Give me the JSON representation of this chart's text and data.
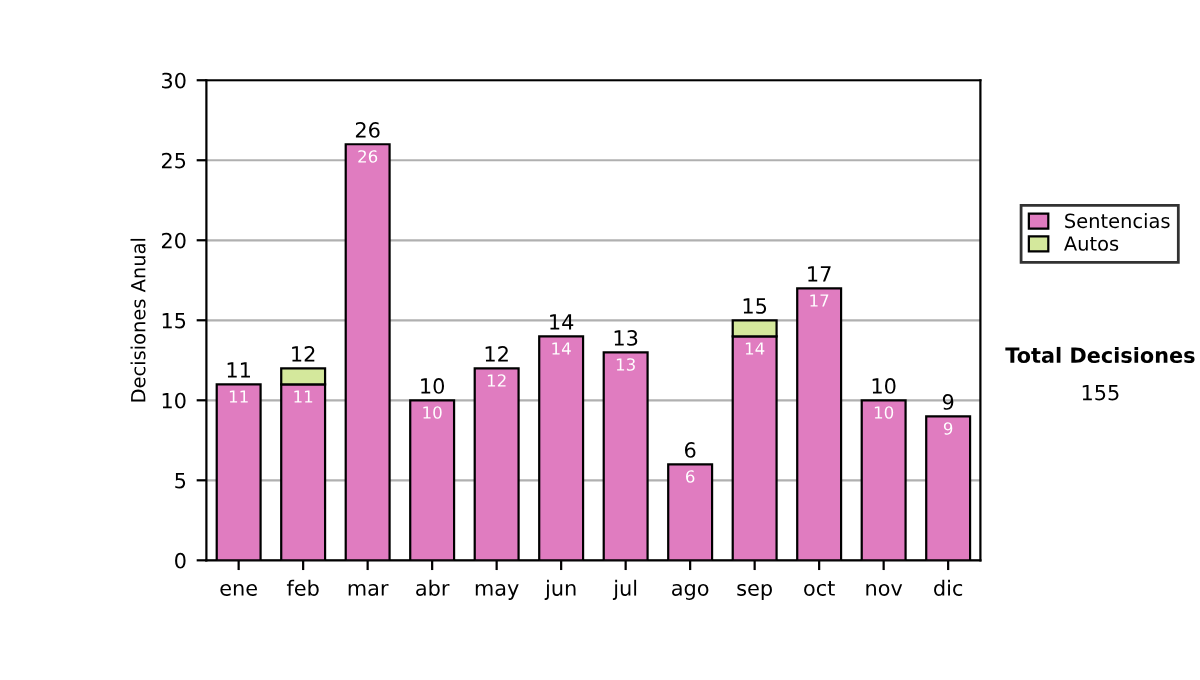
{
  "chart_data": {
    "type": "bar",
    "stacked": true,
    "ylabel": "Decisiones Anual",
    "categories": [
      "ene",
      "feb",
      "mar",
      "abr",
      "may",
      "jun",
      "jul",
      "ago",
      "sep",
      "oct",
      "nov",
      "dic"
    ],
    "series": [
      {
        "name": "Sentencias",
        "color": "#e07cc0",
        "values": [
          11,
          11,
          26,
          10,
          12,
          14,
          13,
          6,
          14,
          17,
          10,
          9
        ],
        "value_labels": [
          "11",
          "11",
          "26",
          "10",
          "12",
          "14",
          "13",
          "6",
          "14",
          "17",
          "10",
          "9"
        ]
      },
      {
        "name": "Autos",
        "color": "#d4e89c",
        "values": [
          null,
          1,
          null,
          null,
          null,
          null,
          null,
          null,
          1,
          null,
          null,
          null
        ]
      }
    ],
    "totals": [
      "11",
      "12",
      "26",
      "10",
      "12",
      "14",
      "13",
      "6",
      "15",
      "17",
      "10",
      "9"
    ],
    "ylim": [
      0,
      30
    ],
    "yticks": [
      0,
      5,
      10,
      15,
      20,
      25,
      30
    ],
    "grid": "y",
    "legend": "right",
    "annotations": [
      "Total Decisiones",
      "155"
    ]
  }
}
